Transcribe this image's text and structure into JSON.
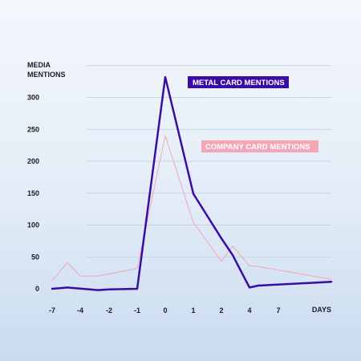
{
  "chart_data": {
    "type": "line",
    "title": "",
    "ylabel_lines": [
      "MEDIA",
      "MENTIONS"
    ],
    "xlabel": "DAYS",
    "x_tick_labels": [
      "-7",
      "-4",
      "-2",
      "-1",
      "0",
      "1",
      "2",
      "4",
      "7"
    ],
    "y_ticks": [
      0,
      50,
      100,
      150,
      200,
      250,
      300
    ],
    "ylim": [
      0,
      350
    ],
    "grid": true,
    "series": [
      {
        "name": "METAL CARD MENTIONS",
        "color": "#3a0ca3",
        "points": [
          {
            "x": "-7",
            "y": 0
          },
          {
            "x": "-6",
            "y": 2
          },
          {
            "x": "-3",
            "y": -2
          },
          {
            "x": "-2",
            "y": -1
          },
          {
            "x": "-1",
            "y": 0
          },
          {
            "x": "0",
            "y": 332
          },
          {
            "x": "1",
            "y": 149
          },
          {
            "x": "2",
            "y": 79
          },
          {
            "x": "2.5",
            "y": 53
          },
          {
            "x": "4",
            "y": 2
          },
          {
            "x": "5",
            "y": 5
          },
          {
            "x": "8",
            "y": 11
          }
        ]
      },
      {
        "name": "COMPANY CARD MENTIONS",
        "color": "#f4a6b4",
        "points": [
          {
            "x": "-7",
            "y": 13
          },
          {
            "x": "-6",
            "y": 41
          },
          {
            "x": "-4",
            "y": 20
          },
          {
            "x": "-3",
            "y": 20
          },
          {
            "x": "-1",
            "y": 32
          },
          {
            "x": "0",
            "y": 240
          },
          {
            "x": "1",
            "y": 104
          },
          {
            "x": "2",
            "y": 43
          },
          {
            "x": "2.5",
            "y": 67
          },
          {
            "x": "4",
            "y": 36
          },
          {
            "x": "5",
            "y": 35
          },
          {
            "x": "8",
            "y": 15
          }
        ]
      }
    ]
  }
}
